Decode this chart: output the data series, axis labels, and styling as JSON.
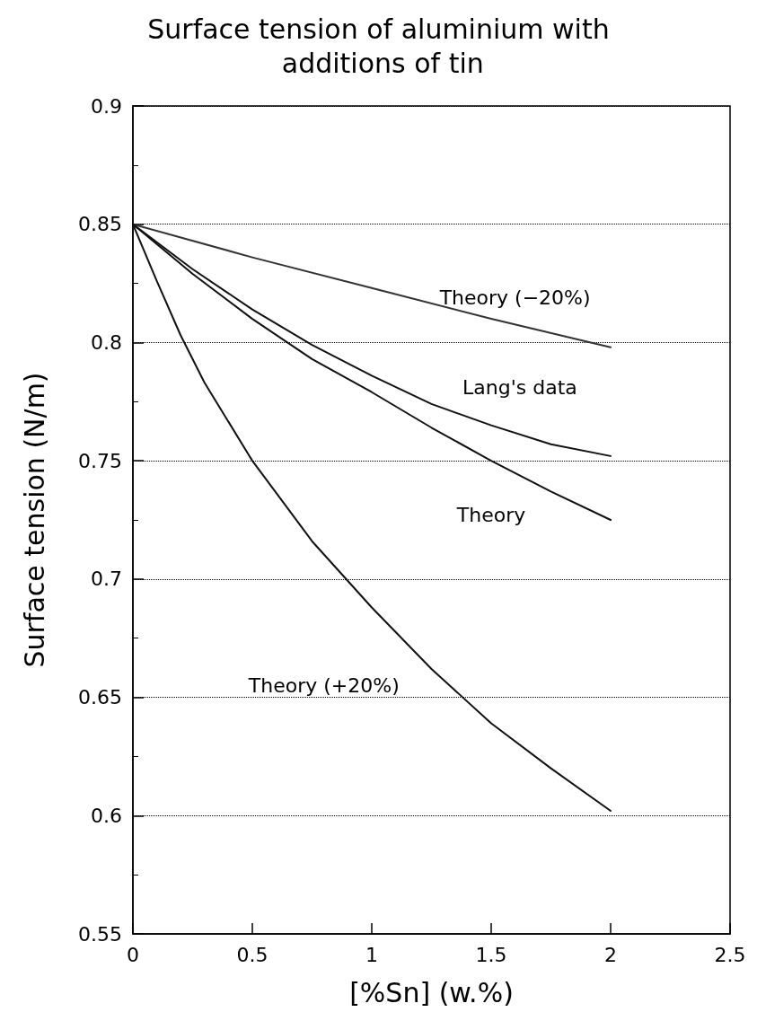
{
  "chart_data": {
    "type": "line",
    "title": "Surface tension of aluminium with additions of tin",
    "xlabel": "[%Sn] (w.%)",
    "ylabel": "Surface tension (N/m)",
    "xlim": [
      0,
      2.5
    ],
    "xticks": [
      0,
      0.5,
      1,
      1.5,
      2,
      2.5
    ],
    "ylim": [
      0.55,
      0.9
    ],
    "yticks": [
      0.55,
      0.6,
      0.65,
      0.7,
      0.75,
      0.8,
      0.85,
      0.9
    ],
    "grid": "y",
    "legend": false,
    "marker": "none",
    "line_style": "solid",
    "series": [
      {
        "name": "Theory (−20%)",
        "color": "#333333",
        "x": [
          0,
          0.5,
          1,
          1.5,
          2
        ],
        "values": [
          0.85,
          0.836,
          0.823,
          0.81,
          0.798
        ]
      },
      {
        "name": "Lang's data",
        "color": "#111111",
        "x": [
          0,
          0.25,
          0.5,
          0.75,
          1,
          1.25,
          1.5,
          1.75,
          2
        ],
        "values": [
          0.85,
          0.831,
          0.814,
          0.799,
          0.786,
          0.774,
          0.765,
          0.757,
          0.752
        ]
      },
      {
        "name": "Theory",
        "color": "#111111",
        "x": [
          0,
          0.25,
          0.5,
          0.75,
          1,
          1.25,
          1.5,
          1.75,
          2
        ],
        "values": [
          0.85,
          0.829,
          0.81,
          0.793,
          0.779,
          0.764,
          0.75,
          0.737,
          0.725
        ]
      },
      {
        "name": "Theory (+20%)",
        "color": "#111111",
        "x": [
          0,
          0.1,
          0.2,
          0.3,
          0.5,
          0.75,
          1,
          1.25,
          1.5,
          1.75,
          2
        ],
        "values": [
          0.85,
          0.826,
          0.803,
          0.783,
          0.75,
          0.716,
          0.688,
          0.662,
          0.639,
          0.62,
          0.602
        ]
      }
    ]
  }
}
